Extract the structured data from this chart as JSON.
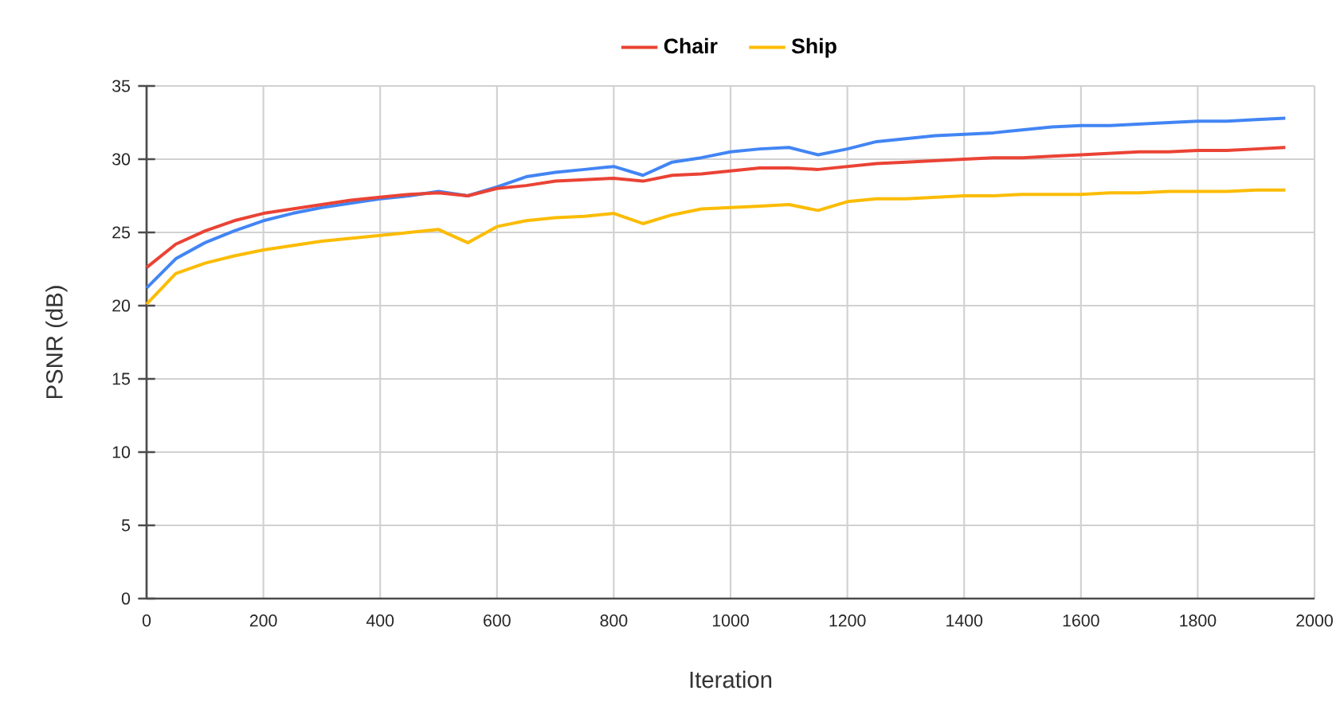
{
  "chart_data": {
    "type": "line",
    "xlabel": "Iteration",
    "ylabel": "PSNR (dB)",
    "x": [
      0,
      50,
      100,
      150,
      200,
      250,
      300,
      350,
      400,
      450,
      500,
      550,
      600,
      650,
      700,
      750,
      800,
      850,
      900,
      950,
      1000,
      1050,
      1100,
      1150,
      1200,
      1250,
      1300,
      1350,
      1400,
      1450,
      1500,
      1550,
      1600,
      1650,
      1700,
      1750,
      1800,
      1850,
      1900,
      1950
    ],
    "series": [
      {
        "color": "#4285f4",
        "values": [
          21.2,
          23.2,
          24.3,
          25.1,
          25.8,
          26.3,
          26.7,
          27.0,
          27.3,
          27.5,
          27.8,
          27.5,
          28.1,
          28.8,
          29.1,
          29.3,
          29.5,
          28.9,
          29.8,
          30.1,
          30.5,
          30.7,
          30.8,
          30.3,
          30.7,
          31.2,
          31.4,
          31.6,
          31.7,
          31.8,
          32.0,
          32.2,
          32.3,
          32.3,
          32.4,
          32.5,
          32.6,
          32.6,
          32.7,
          32.8
        ]
      },
      {
        "name": "Chair",
        "color": "#ea4335",
        "values": [
          22.6,
          24.2,
          25.1,
          25.8,
          26.3,
          26.6,
          26.9,
          27.2,
          27.4,
          27.6,
          27.7,
          27.5,
          28.0,
          28.2,
          28.5,
          28.6,
          28.7,
          28.5,
          28.9,
          29.0,
          29.2,
          29.4,
          29.4,
          29.3,
          29.5,
          29.7,
          29.8,
          29.9,
          30.0,
          30.1,
          30.1,
          30.2,
          30.3,
          30.4,
          30.5,
          30.5,
          30.6,
          30.6,
          30.7,
          30.8
        ]
      },
      {
        "name": "Ship",
        "color": "#fbbc04",
        "values": [
          20.1,
          22.2,
          22.9,
          23.4,
          23.8,
          24.1,
          24.4,
          24.6,
          24.8,
          25.0,
          25.2,
          24.3,
          25.4,
          25.8,
          26.0,
          26.1,
          26.3,
          25.6,
          26.2,
          26.6,
          26.7,
          26.8,
          26.9,
          26.5,
          27.1,
          27.3,
          27.3,
          27.4,
          27.5,
          27.5,
          27.6,
          27.6,
          27.6,
          27.7,
          27.7,
          27.8,
          27.8,
          27.8,
          27.9,
          27.9
        ]
      }
    ],
    "xlim": [
      0,
      2000
    ],
    "xticks": [
      0,
      200,
      400,
      600,
      800,
      1000,
      1200,
      1400,
      1600,
      1800,
      2000
    ],
    "ylim": [
      0,
      35
    ],
    "yticks": [
      0,
      5,
      10,
      15,
      20,
      25,
      30,
      35
    ],
    "grid": true,
    "legend": "top",
    "marker": "none",
    "line_style": "solid"
  }
}
